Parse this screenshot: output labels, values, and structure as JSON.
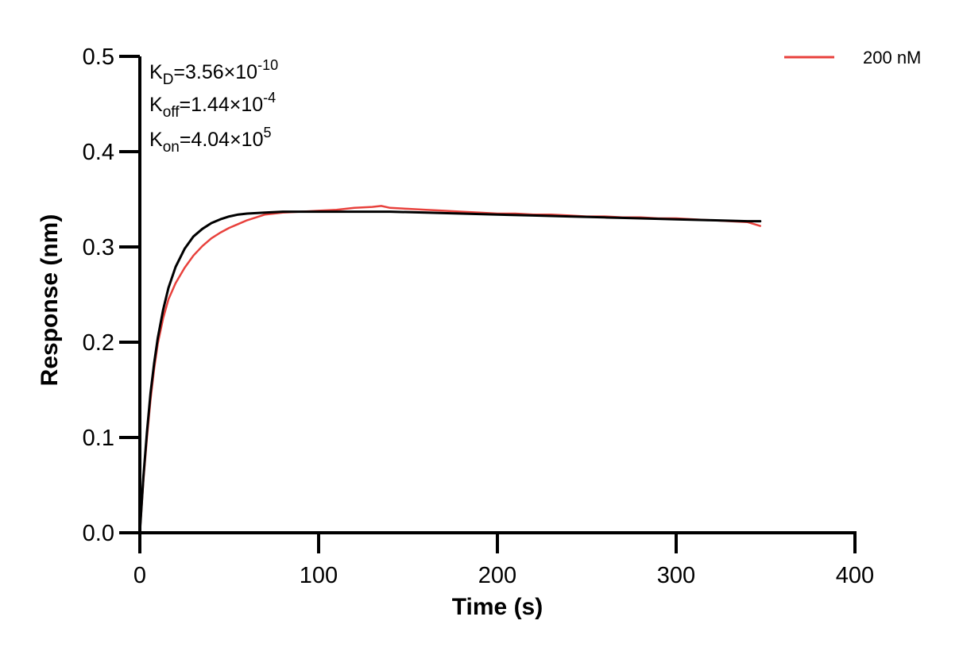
{
  "chart_data": {
    "type": "line",
    "title": "",
    "xlabel": "Time (s)",
    "ylabel": "Response (nm)",
    "xlim": [
      0,
      400
    ],
    "ylim": [
      0,
      0.5
    ],
    "x_ticks": [
      0,
      100,
      200,
      300,
      400
    ],
    "x_tick_labels": [
      "0",
      "100",
      "200",
      "300",
      "400"
    ],
    "y_ticks": [
      0,
      0.1,
      0.2,
      0.3,
      0.4,
      0.5
    ],
    "y_tick_labels": [
      "0.0",
      "0.1",
      "0.2",
      "0.3",
      "0.4",
      "0.5"
    ],
    "grid": false,
    "legend_position": "top-right",
    "annotations": [
      {
        "symbol": "K",
        "subscript": "D",
        "value": "=3.56×10",
        "exponent": "-10"
      },
      {
        "symbol": "K",
        "subscript": "off",
        "value": "=1.44×10",
        "exponent": "-4"
      },
      {
        "symbol": "K",
        "subscript": "on",
        "value": "=4.04×10",
        "exponent": "5"
      }
    ],
    "series": [
      {
        "name": "200 nM",
        "role": "measured",
        "color": "#e8413c",
        "x": [
          0,
          2,
          4,
          6,
          8,
          10,
          13,
          16,
          20,
          25,
          30,
          35,
          40,
          45,
          50,
          55,
          60,
          65,
          70,
          75,
          80,
          90,
          100,
          110,
          120,
          130,
          135,
          140,
          150,
          160,
          170,
          180,
          190,
          200,
          210,
          220,
          230,
          240,
          250,
          260,
          270,
          280,
          290,
          300,
          310,
          320,
          330,
          340,
          347
        ],
        "y": [
          0.0,
          0.055,
          0.1,
          0.14,
          0.172,
          0.198,
          0.225,
          0.245,
          0.262,
          0.278,
          0.291,
          0.301,
          0.309,
          0.315,
          0.32,
          0.324,
          0.328,
          0.331,
          0.334,
          0.335,
          0.336,
          0.337,
          0.338,
          0.339,
          0.341,
          0.342,
          0.343,
          0.341,
          0.34,
          0.339,
          0.338,
          0.337,
          0.336,
          0.335,
          0.335,
          0.334,
          0.334,
          0.333,
          0.332,
          0.332,
          0.331,
          0.331,
          0.33,
          0.33,
          0.329,
          0.328,
          0.327,
          0.326,
          0.322
        ]
      },
      {
        "name": "",
        "role": "fit",
        "color": "#000000",
        "x": [
          0,
          2,
          4,
          6,
          8,
          10,
          13,
          16,
          20,
          25,
          30,
          35,
          40,
          45,
          50,
          55,
          60,
          70,
          80,
          100,
          120,
          140,
          160,
          180,
          200,
          220,
          240,
          260,
          280,
          300,
          320,
          340,
          347
        ],
        "y": [
          0.0,
          0.059,
          0.106,
          0.147,
          0.178,
          0.204,
          0.234,
          0.257,
          0.279,
          0.298,
          0.311,
          0.319,
          0.325,
          0.329,
          0.332,
          0.334,
          0.335,
          0.336,
          0.337,
          0.337,
          0.337,
          0.337,
          0.336,
          0.335,
          0.334,
          0.333,
          0.332,
          0.331,
          0.33,
          0.329,
          0.328,
          0.327,
          0.327
        ]
      }
    ]
  }
}
